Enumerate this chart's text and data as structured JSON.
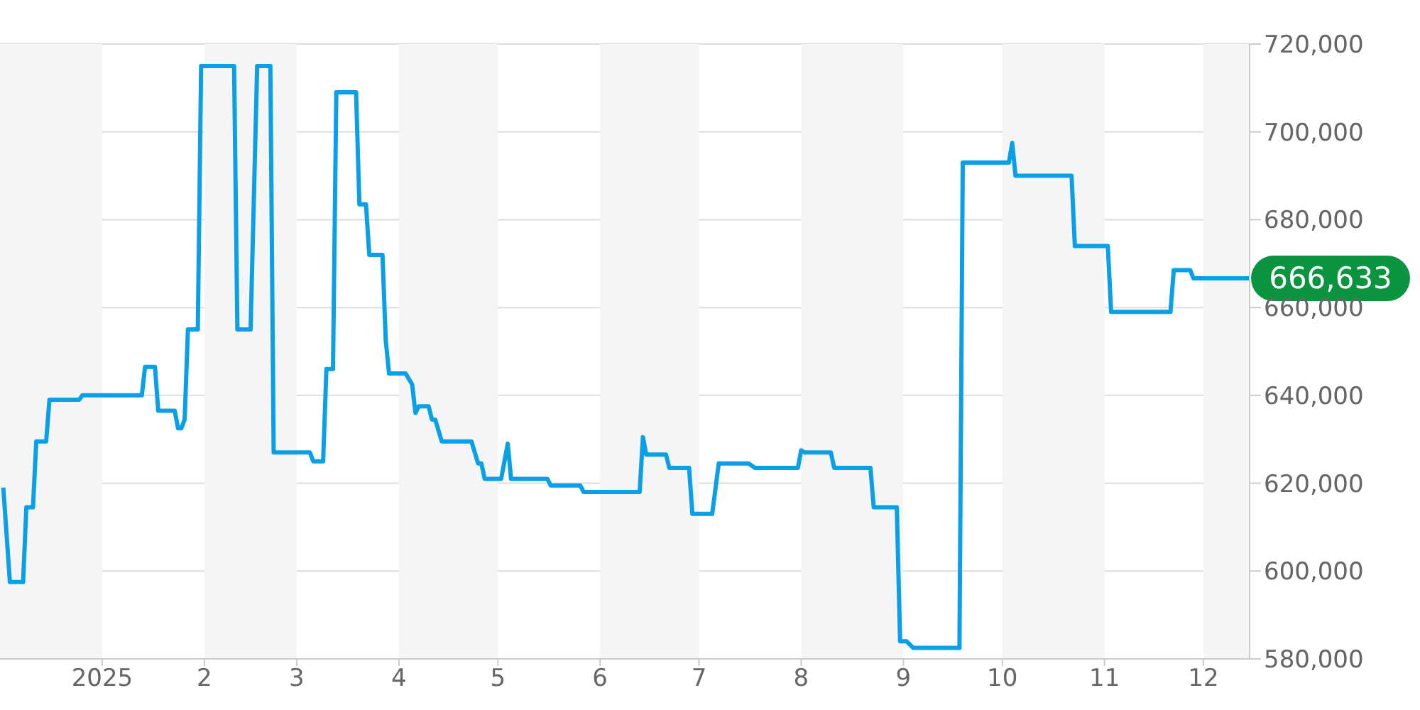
{
  "chart_data": {
    "type": "line",
    "xlim": [
      "2024-12-01",
      "2025-12-15"
    ],
    "xticks": [
      {
        "value": "2025-01-01",
        "label": "2025"
      },
      {
        "value": "2025-02-01",
        "label": "2"
      },
      {
        "value": "2025-03-01",
        "label": "3"
      },
      {
        "value": "2025-04-01",
        "label": "4"
      },
      {
        "value": "2025-05-01",
        "label": "5"
      },
      {
        "value": "2025-06-01",
        "label": "6"
      },
      {
        "value": "2025-07-01",
        "label": "7"
      },
      {
        "value": "2025-08-01",
        "label": "8"
      },
      {
        "value": "2025-09-01",
        "label": "9"
      },
      {
        "value": "2025-10-01",
        "label": "10"
      },
      {
        "value": "2025-11-01",
        "label": "11"
      },
      {
        "value": "2025-12-01",
        "label": "12"
      }
    ],
    "ylim": [
      580000,
      720000
    ],
    "yticks": [
      {
        "value": 580000,
        "label": "580,000"
      },
      {
        "value": 600000,
        "label": "600,000"
      },
      {
        "value": 620000,
        "label": "620,000"
      },
      {
        "value": 640000,
        "label": "640,000"
      },
      {
        "value": 660000,
        "label": "660,000"
      },
      {
        "value": 680000,
        "label": "680,000"
      },
      {
        "value": 700000,
        "label": "700,000"
      },
      {
        "value": 720000,
        "label": "720,000"
      }
    ],
    "grid": "y",
    "legend": false,
    "bands": [
      {
        "axis": "x",
        "from": "2024-12-01",
        "to": "2025-01-01",
        "color": "#f5f5f5"
      },
      {
        "axis": "x",
        "from": "2025-02-01",
        "to": "2025-03-01",
        "color": "#f5f5f5"
      },
      {
        "axis": "x",
        "from": "2025-04-01",
        "to": "2025-05-01",
        "color": "#f5f5f5"
      },
      {
        "axis": "x",
        "from": "2025-06-01",
        "to": "2025-07-01",
        "color": "#f5f5f5"
      },
      {
        "axis": "x",
        "from": "2025-08-01",
        "to": "2025-09-01",
        "color": "#f5f5f5"
      },
      {
        "axis": "x",
        "from": "2025-10-01",
        "to": "2025-11-01",
        "color": "#f5f5f5"
      },
      {
        "axis": "x",
        "from": "2025-12-01",
        "to": "2025-12-15",
        "color": "#f5f5f5"
      }
    ],
    "annotations": [
      {
        "text": "666,633",
        "x": "2025-12-15",
        "y": 666633
      }
    ],
    "series": [
      {
        "color": "#0aa0e8",
        "x": [
          "2024-12-02",
          "2024-12-04",
          "2024-12-08",
          "2024-12-09",
          "2024-12-11",
          "2024-12-12",
          "2024-12-15",
          "2024-12-16",
          "2024-12-25",
          "2024-12-26",
          "2025-01-13",
          "2025-01-14",
          "2025-01-17",
          "2025-01-18",
          "2025-01-23",
          "2025-01-24",
          "2025-01-25",
          "2025-01-26",
          "2025-01-27",
          "2025-01-30",
          "2025-01-31",
          "2025-02-10",
          "2025-02-11",
          "2025-02-15",
          "2025-02-17",
          "2025-02-21",
          "2025-02-22",
          "2025-03-05",
          "2025-03-06",
          "2025-03-09",
          "2025-03-10",
          "2025-03-12",
          "2025-03-13",
          "2025-03-19",
          "2025-03-20",
          "2025-03-22",
          "2025-03-23",
          "2025-03-27",
          "2025-03-28",
          "2025-03-29",
          "2025-04-03",
          "2025-04-05",
          "2025-04-06",
          "2025-04-07",
          "2025-04-10",
          "2025-04-11",
          "2025-04-12",
          "2025-04-14",
          "2025-04-23",
          "2025-04-25",
          "2025-04-26",
          "2025-04-27",
          "2025-05-02",
          "2025-05-04",
          "2025-05-05",
          "2025-05-16",
          "2025-05-17",
          "2025-05-26",
          "2025-05-27",
          "2025-06-13",
          "2025-06-14",
          "2025-06-15",
          "2025-06-21",
          "2025-06-22",
          "2025-06-28",
          "2025-06-29",
          "2025-07-05",
          "2025-07-07",
          "2025-07-16",
          "2025-07-18",
          "2025-07-31",
          "2025-08-01",
          "2025-08-02",
          "2025-08-10",
          "2025-08-11",
          "2025-08-22",
          "2025-08-23",
          "2025-08-30",
          "2025-08-31",
          "2025-09-02",
          "2025-09-04",
          "2025-09-18",
          "2025-09-19",
          "2025-10-03",
          "2025-10-04",
          "2025-10-05",
          "2025-10-22",
          "2025-10-23",
          "2025-11-02",
          "2025-11-03",
          "2025-11-21",
          "2025-11-22",
          "2025-11-27",
          "2025-11-28",
          "2025-12-15"
        ],
        "values": [
          619000,
          597500,
          597500,
          614500,
          614500,
          629500,
          629500,
          639000,
          639000,
          640000,
          640000,
          646500,
          646500,
          636500,
          636500,
          632500,
          632500,
          634500,
          655000,
          655000,
          715000,
          715000,
          655000,
          655000,
          715000,
          715000,
          627000,
          627000,
          625000,
          625000,
          646000,
          646000,
          709000,
          709000,
          683500,
          683500,
          672000,
          672000,
          652500,
          645000,
          645000,
          642500,
          636000,
          637500,
          637500,
          634500,
          634500,
          629500,
          629500,
          624500,
          624500,
          621000,
          621000,
          629000,
          621000,
          621000,
          619500,
          619500,
          618000,
          618000,
          630500,
          626500,
          626500,
          623500,
          623500,
          613000,
          613000,
          624500,
          624500,
          623500,
          623500,
          627500,
          627000,
          627000,
          623500,
          623500,
          614500,
          614500,
          584000,
          584000,
          582500,
          582500,
          693000,
          693000,
          697500,
          690000,
          690000,
          674000,
          674000,
          659000,
          659000,
          668500,
          668500,
          666633,
          666633
        ]
      }
    ]
  }
}
